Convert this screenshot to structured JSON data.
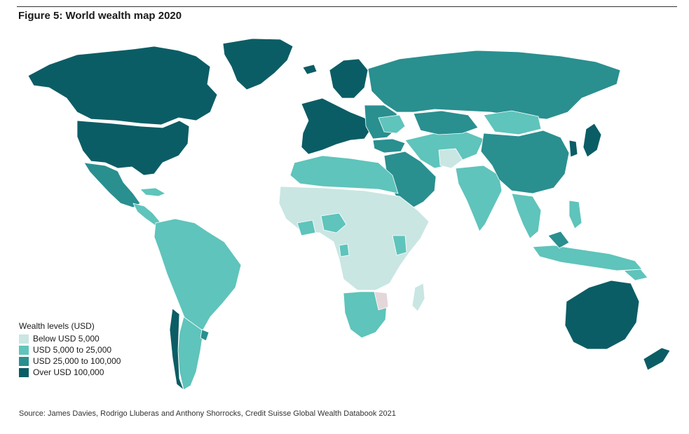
{
  "figure": {
    "title": "Figure 5: World wealth map 2020",
    "source": "Source: James Davies, Rodrigo Lluberas and Anthony Shorrocks, Credit Suisse Global Wealth Databook 2021"
  },
  "legend": {
    "title": "Wealth levels (USD)",
    "items": [
      {
        "label": "Below USD 5,000",
        "color": "#c9e6e3"
      },
      {
        "label": "USD 5,000 to 25,000",
        "color": "#5fc4bb"
      },
      {
        "label": "USD 25,000 to 100,000",
        "color": "#2a8f8f"
      },
      {
        "label": "Over USD 100,000",
        "color": "#0b5d65"
      }
    ]
  },
  "colors": {
    "no_data": "#e4d7da",
    "border": "#ffffff"
  }
}
